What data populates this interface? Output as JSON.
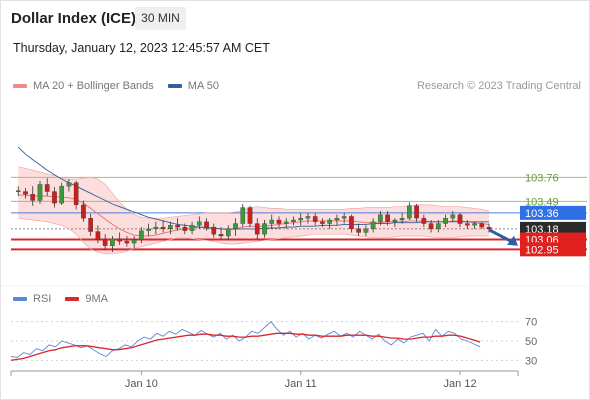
{
  "header": {
    "title": "Dollar Index (ICE)",
    "timeframe": "30 MIN",
    "datetime": "Thursday, January 12, 2023 12:45:57 AM CET"
  },
  "legend": {
    "items": [
      {
        "label": "MA 20 + Bollinger Bands",
        "color": "#f08a8a"
      },
      {
        "label": "MA 50",
        "color": "#335e99"
      }
    ],
    "credit": "Research © 2023 Trading Central"
  },
  "rsi_legend": {
    "items": [
      {
        "label": "RSI",
        "color": "#5b86d6"
      },
      {
        "label": "9MA",
        "color": "#d9272e"
      }
    ]
  },
  "chart_data": [
    {
      "type": "candlestick",
      "ylim": [
        102.74,
        104.18
      ],
      "xlim": [
        0,
        70
      ],
      "x_ticks": [
        {
          "x": 18,
          "label": "Jan 10"
        },
        {
          "x": 40,
          "label": "Jan 11"
        },
        {
          "x": 62,
          "label": "Jan 12"
        }
      ],
      "candles": [
        [
          103.61,
          103.66,
          103.55,
          103.6
        ],
        [
          103.6,
          103.64,
          103.52,
          103.57
        ],
        [
          103.57,
          103.66,
          103.44,
          103.5
        ],
        [
          103.5,
          103.72,
          103.46,
          103.68
        ],
        [
          103.68,
          103.75,
          103.55,
          103.6
        ],
        [
          103.6,
          103.65,
          103.42,
          103.47
        ],
        [
          103.47,
          103.7,
          103.45,
          103.66
        ],
        [
          103.66,
          103.74,
          103.6,
          103.7
        ],
        [
          103.7,
          103.72,
          103.4,
          103.45
        ],
        [
          103.45,
          103.5,
          103.26,
          103.3
        ],
        [
          103.3,
          103.35,
          103.1,
          103.15
        ],
        [
          103.15,
          103.22,
          103.02,
          103.06
        ],
        [
          103.06,
          103.12,
          102.94,
          102.99
        ],
        [
          102.99,
          103.1,
          102.92,
          103.07
        ],
        [
          103.07,
          103.14,
          103.0,
          103.04
        ],
        [
          103.04,
          103.1,
          102.98,
          103.02
        ],
        [
          103.02,
          103.1,
          102.96,
          103.06
        ],
        [
          103.06,
          103.2,
          103.02,
          103.16
        ],
        [
          103.16,
          103.24,
          103.1,
          103.18
        ],
        [
          103.18,
          103.26,
          103.12,
          103.2
        ],
        [
          103.2,
          103.28,
          103.14,
          103.18
        ],
        [
          103.18,
          103.26,
          103.12,
          103.22
        ],
        [
          103.22,
          103.3,
          103.16,
          103.2
        ],
        [
          103.2,
          103.24,
          103.12,
          103.16
        ],
        [
          103.16,
          103.26,
          103.12,
          103.22
        ],
        [
          103.22,
          103.32,
          103.18,
          103.26
        ],
        [
          103.26,
          103.3,
          103.16,
          103.2
        ],
        [
          103.2,
          103.24,
          103.08,
          103.12
        ],
        [
          103.12,
          103.2,
          103.06,
          103.1
        ],
        [
          103.1,
          103.22,
          103.06,
          103.18
        ],
        [
          103.18,
          103.3,
          103.1,
          103.24
        ],
        [
          103.24,
          103.46,
          103.2,
          103.42
        ],
        [
          103.42,
          103.44,
          103.2,
          103.24
        ],
        [
          103.24,
          103.3,
          103.06,
          103.12
        ],
        [
          103.12,
          103.28,
          103.08,
          103.24
        ],
        [
          103.24,
          103.34,
          103.18,
          103.28
        ],
        [
          103.28,
          103.32,
          103.2,
          103.24
        ],
        [
          103.24,
          103.3,
          103.18,
          103.26
        ],
        [
          103.26,
          103.32,
          103.22,
          103.28
        ],
        [
          103.28,
          103.36,
          103.22,
          103.3
        ],
        [
          103.3,
          103.36,
          103.24,
          103.32
        ],
        [
          103.32,
          103.36,
          103.22,
          103.26
        ],
        [
          103.26,
          103.3,
          103.2,
          103.24
        ],
        [
          103.24,
          103.3,
          103.18,
          103.28
        ],
        [
          103.28,
          103.34,
          103.22,
          103.3
        ],
        [
          103.3,
          103.36,
          103.24,
          103.32
        ],
        [
          103.32,
          103.34,
          103.14,
          103.18
        ],
        [
          103.18,
          103.24,
          103.1,
          103.14
        ],
        [
          103.14,
          103.22,
          103.1,
          103.18
        ],
        [
          103.18,
          103.3,
          103.14,
          103.26
        ],
        [
          103.26,
          103.38,
          103.22,
          103.34
        ],
        [
          103.34,
          103.38,
          103.22,
          103.26
        ],
        [
          103.26,
          103.3,
          103.2,
          103.28
        ],
        [
          103.28,
          103.36,
          103.24,
          103.3
        ],
        [
          103.3,
          103.48,
          103.28,
          103.44
        ],
        [
          103.44,
          103.46,
          103.26,
          103.3
        ],
        [
          103.3,
          103.34,
          103.2,
          103.24
        ],
        [
          103.24,
          103.28,
          103.14,
          103.18
        ],
        [
          103.18,
          103.28,
          103.14,
          103.24
        ],
        [
          103.24,
          103.34,
          103.2,
          103.3
        ],
        [
          103.3,
          103.38,
          103.26,
          103.34
        ],
        [
          103.34,
          103.36,
          103.2,
          103.24
        ],
        [
          103.24,
          103.28,
          103.18,
          103.22
        ],
        [
          103.22,
          103.26,
          103.18,
          103.24
        ],
        [
          103.24,
          103.26,
          103.18,
          103.2
        ],
        [
          103.2,
          103.24,
          103.14,
          103.18
        ]
      ],
      "ma20": [
        103.56,
        103.56,
        103.55,
        103.55,
        103.55,
        103.54,
        103.54,
        103.53,
        103.51,
        103.47,
        103.41,
        103.35,
        103.29,
        103.23,
        103.18,
        103.14,
        103.11,
        103.1,
        103.1,
        103.11,
        103.13,
        103.15,
        103.17,
        103.18,
        103.19,
        103.2,
        103.2,
        103.19,
        103.18,
        103.17,
        103.18,
        103.2,
        103.21,
        103.21,
        103.21,
        103.22,
        103.23,
        103.24,
        103.25,
        103.26,
        103.27,
        103.27,
        103.27,
        103.27,
        103.27,
        103.27,
        103.27,
        103.26,
        103.25,
        103.25,
        103.25,
        103.26,
        103.26,
        103.26,
        103.27,
        103.27,
        103.27,
        103.26,
        103.26,
        103.26,
        103.27,
        103.27,
        103.26,
        103.25,
        103.24,
        103.23
      ],
      "bb_upper": [
        103.88,
        103.86,
        103.84,
        103.82,
        103.8,
        103.78,
        103.75,
        103.74,
        103.74,
        103.75,
        103.76,
        103.74,
        103.68,
        103.58,
        103.48,
        103.4,
        103.34,
        103.31,
        103.3,
        103.3,
        103.3,
        103.31,
        103.32,
        103.33,
        103.34,
        103.35,
        103.36,
        103.36,
        103.36,
        103.36,
        103.37,
        103.39,
        103.42,
        103.43,
        103.42,
        103.41,
        103.41,
        103.4,
        103.4,
        103.4,
        103.4,
        103.4,
        103.4,
        103.4,
        103.4,
        103.4,
        103.41,
        103.41,
        103.42,
        103.42,
        103.42,
        103.42,
        103.43,
        103.43,
        103.44,
        103.45,
        103.45,
        103.45,
        103.44,
        103.43,
        103.43,
        103.43,
        103.42,
        103.41,
        103.4,
        103.38
      ],
      "bb_lower": [
        103.3,
        103.29,
        103.28,
        103.27,
        103.26,
        103.24,
        103.22,
        103.18,
        103.12,
        103.03,
        102.95,
        102.92,
        102.9,
        102.9,
        102.91,
        102.93,
        102.96,
        102.98,
        103.0,
        103.02,
        103.04,
        103.06,
        103.08,
        103.08,
        103.07,
        103.06,
        103.05,
        103.04,
        103.02,
        103.01,
        103.01,
        103.02,
        103.03,
        103.04,
        103.05,
        103.06,
        103.07,
        103.08,
        103.09,
        103.1,
        103.11,
        103.12,
        103.12,
        103.12,
        103.12,
        103.12,
        103.11,
        103.1,
        103.09,
        103.08,
        103.08,
        103.08,
        103.09,
        103.1,
        103.1,
        103.1,
        103.1,
        103.09,
        103.08,
        103.08,
        103.08,
        103.09,
        103.1,
        103.1,
        103.1,
        103.1
      ],
      "ma50": [
        104.1,
        104.02,
        103.96,
        103.9,
        103.84,
        103.79,
        103.74,
        103.7,
        103.66,
        103.62,
        103.58,
        103.54,
        103.5,
        103.46,
        103.43,
        103.4,
        103.37,
        103.34,
        103.31,
        103.29,
        103.27,
        103.25,
        103.23,
        103.22,
        103.21,
        103.2,
        103.19,
        103.19,
        103.18,
        103.18,
        103.18,
        103.18,
        103.18,
        103.18,
        103.19,
        103.19,
        103.19,
        103.2,
        103.2,
        103.21,
        103.21,
        103.21,
        103.22,
        103.22,
        103.22,
        103.23,
        103.23,
        103.23,
        103.23,
        103.24,
        103.24,
        103.24,
        103.25,
        103.25,
        103.25,
        103.25,
        103.26,
        103.26,
        103.26,
        103.26,
        103.26,
        103.26,
        103.26,
        103.26,
        103.26,
        103.26
      ],
      "levels": [
        {
          "value": 103.76,
          "label": "103.76",
          "style": "green"
        },
        {
          "value": 103.49,
          "label": "103.49",
          "style": "green"
        },
        {
          "value": 103.36,
          "label": "103.36",
          "style": "blue"
        },
        {
          "value": 103.18,
          "label": "103.18",
          "style": "price"
        },
        {
          "value": 103.06,
          "label": "103.06",
          "style": "red"
        },
        {
          "value": 102.95,
          "label": "102.95",
          "style": "red"
        }
      ],
      "forecast_arrow": {
        "from_x": 66,
        "from_y": 103.17,
        "to_x": 70,
        "to_y": 102.99
      }
    },
    {
      "type": "line",
      "ylim": [
        20,
        80
      ],
      "y_ticks": [
        70,
        50,
        30
      ],
      "guides": [
        70,
        50,
        30
      ],
      "series": [
        {
          "name": "RSI",
          "values": [
            34,
            33,
            38,
            36,
            42,
            40,
            46,
            44,
            50,
            48,
            46,
            43,
            45,
            41,
            37,
            34,
            40,
            42,
            46,
            44,
            50,
            54,
            52,
            58,
            55,
            60,
            57,
            62,
            59,
            56,
            61,
            57,
            54,
            58,
            52,
            56,
            50,
            54,
            60,
            58,
            64,
            70,
            62,
            56,
            60,
            54,
            58,
            52,
            56,
            53,
            57,
            60,
            55,
            58,
            54,
            60,
            56,
            52,
            57,
            50,
            46,
            52,
            48,
            54,
            56,
            58,
            50,
            62,
            55,
            60,
            58,
            52,
            50,
            47,
            44
          ]
        },
        {
          "name": "9MA",
          "values": [
            30,
            31,
            32,
            34,
            36,
            38,
            40,
            41,
            43,
            44,
            45,
            45,
            45,
            44,
            43,
            42,
            41,
            41,
            42,
            43,
            45,
            47,
            49,
            51,
            52,
            53,
            54,
            55,
            56,
            56,
            57,
            57,
            56,
            56,
            55,
            55,
            54,
            54,
            55,
            55,
            56,
            57,
            58,
            58,
            58,
            57,
            57,
            56,
            56,
            55,
            55,
            55,
            55,
            56,
            56,
            56,
            56,
            55,
            55,
            54,
            53,
            53,
            52,
            52,
            53,
            54,
            54,
            55,
            55,
            56,
            56,
            55,
            53,
            51,
            49
          ]
        }
      ]
    }
  ]
}
